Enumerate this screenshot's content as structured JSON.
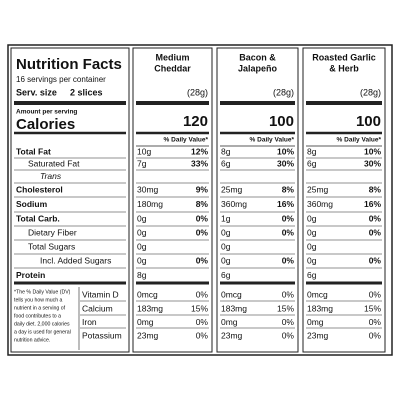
{
  "title": "Nutrition Facts",
  "servings": "16 servings per container",
  "serving_size_label": "Serv. size",
  "serving_size": "2 slices",
  "amount_per_serving": "Amount per serving",
  "calories_label": "Calories",
  "footnote_lines": [
    "*The % Daily Value (DV)",
    "tells you how much a",
    "nutrient in a serving of",
    "food contributes to a",
    "daily diet. 2,000 calories",
    "a day is used for general",
    "nutrition advice."
  ],
  "columns": [
    {
      "name_lines": [
        "Medium",
        "Cheddar"
      ],
      "serving_weight": "(28g)",
      "calories": "120",
      "daily_value_header": "% Daily Value*"
    },
    {
      "name_lines": [
        "Bacon &",
        "Jalapeño"
      ],
      "serving_weight": "(28g)",
      "calories": "100",
      "daily_value_header": "% Daily Value*"
    },
    {
      "name_lines": [
        "Roasted Garlic",
        "& Herb"
      ],
      "serving_weight": "(28g)",
      "calories": "100",
      "daily_value_header": "% Daily Value*"
    }
  ],
  "nutrients": [
    {
      "label": "Total Fat",
      "cells": [
        {
          "amount": "10g",
          "dv": "12%"
        },
        {
          "amount": "8g",
          "dv": "10%"
        },
        {
          "amount": "8g",
          "dv": "10%"
        }
      ]
    },
    {
      "label": "Saturated Fat",
      "cells": [
        {
          "amount": "7g",
          "dv": "33%"
        },
        {
          "amount": "6g",
          "dv": "30%"
        },
        {
          "amount": "6g",
          "dv": "30%"
        }
      ]
    },
    {
      "label": "Trans"
    },
    {
      "label": "Cholesterol",
      "cells": [
        {
          "amount": "30mg",
          "dv": "9%"
        },
        {
          "amount": "25mg",
          "dv": "8%"
        },
        {
          "amount": "25mg",
          "dv": "8%"
        }
      ]
    },
    {
      "label": "Sodium",
      "cells": [
        {
          "amount": "180mg",
          "dv": "8%"
        },
        {
          "amount": "360mg",
          "dv": "16%"
        },
        {
          "amount": "360mg",
          "dv": "16%"
        }
      ]
    },
    {
      "label": "Total Carb.",
      "cells": [
        {
          "amount": "0g",
          "dv": "0%"
        },
        {
          "amount": "1g",
          "dv": "0%"
        },
        {
          "amount": "0g",
          "dv": "0%"
        }
      ]
    },
    {
      "label": "Dietary Fiber",
      "cells": [
        {
          "amount": "0g",
          "dv": "0%"
        },
        {
          "amount": "0g",
          "dv": "0%"
        },
        {
          "amount": "0g",
          "dv": "0%"
        }
      ]
    },
    {
      "label": "Total Sugars",
      "cells": [
        {
          "amount": "0g"
        },
        {
          "amount": "0g"
        },
        {
          "amount": "0g"
        }
      ]
    },
    {
      "label": "Incl. Added Sugars",
      "cells": [
        {
          "amount": "0g",
          "dv": "0%"
        },
        {
          "amount": "0g",
          "dv": "0%"
        },
        {
          "amount": "0g",
          "dv": "0%"
        }
      ]
    },
    {
      "label": "Protein",
      "cells": [
        {
          "amount": "8g"
        },
        {
          "amount": "6g"
        },
        {
          "amount": "6g"
        }
      ]
    }
  ],
  "vitamins": [
    {
      "label": "Vitamin D",
      "cells": [
        {
          "amount": "0mcg",
          "dv": "0%"
        },
        {
          "amount": "0mcg",
          "dv": "0%"
        },
        {
          "amount": "0mcg",
          "dv": "0%"
        }
      ]
    },
    {
      "label": "Calcium",
      "cells": [
        {
          "amount": "183mg",
          "dv": "15%"
        },
        {
          "amount": "183mg",
          "dv": "15%"
        },
        {
          "amount": "183mg",
          "dv": "15%"
        }
      ]
    },
    {
      "label": "Iron",
      "cells": [
        {
          "amount": "0mg",
          "dv": "0%"
        },
        {
          "amount": "0mg",
          "dv": "0%"
        },
        {
          "amount": "0mg",
          "dv": "0%"
        }
      ]
    },
    {
      "label": "Potassium",
      "cells": [
        {
          "amount": "23mg",
          "dv": "0%"
        },
        {
          "amount": "23mg",
          "dv": "0%"
        },
        {
          "amount": "23mg",
          "dv": "0%"
        }
      ]
    }
  ]
}
